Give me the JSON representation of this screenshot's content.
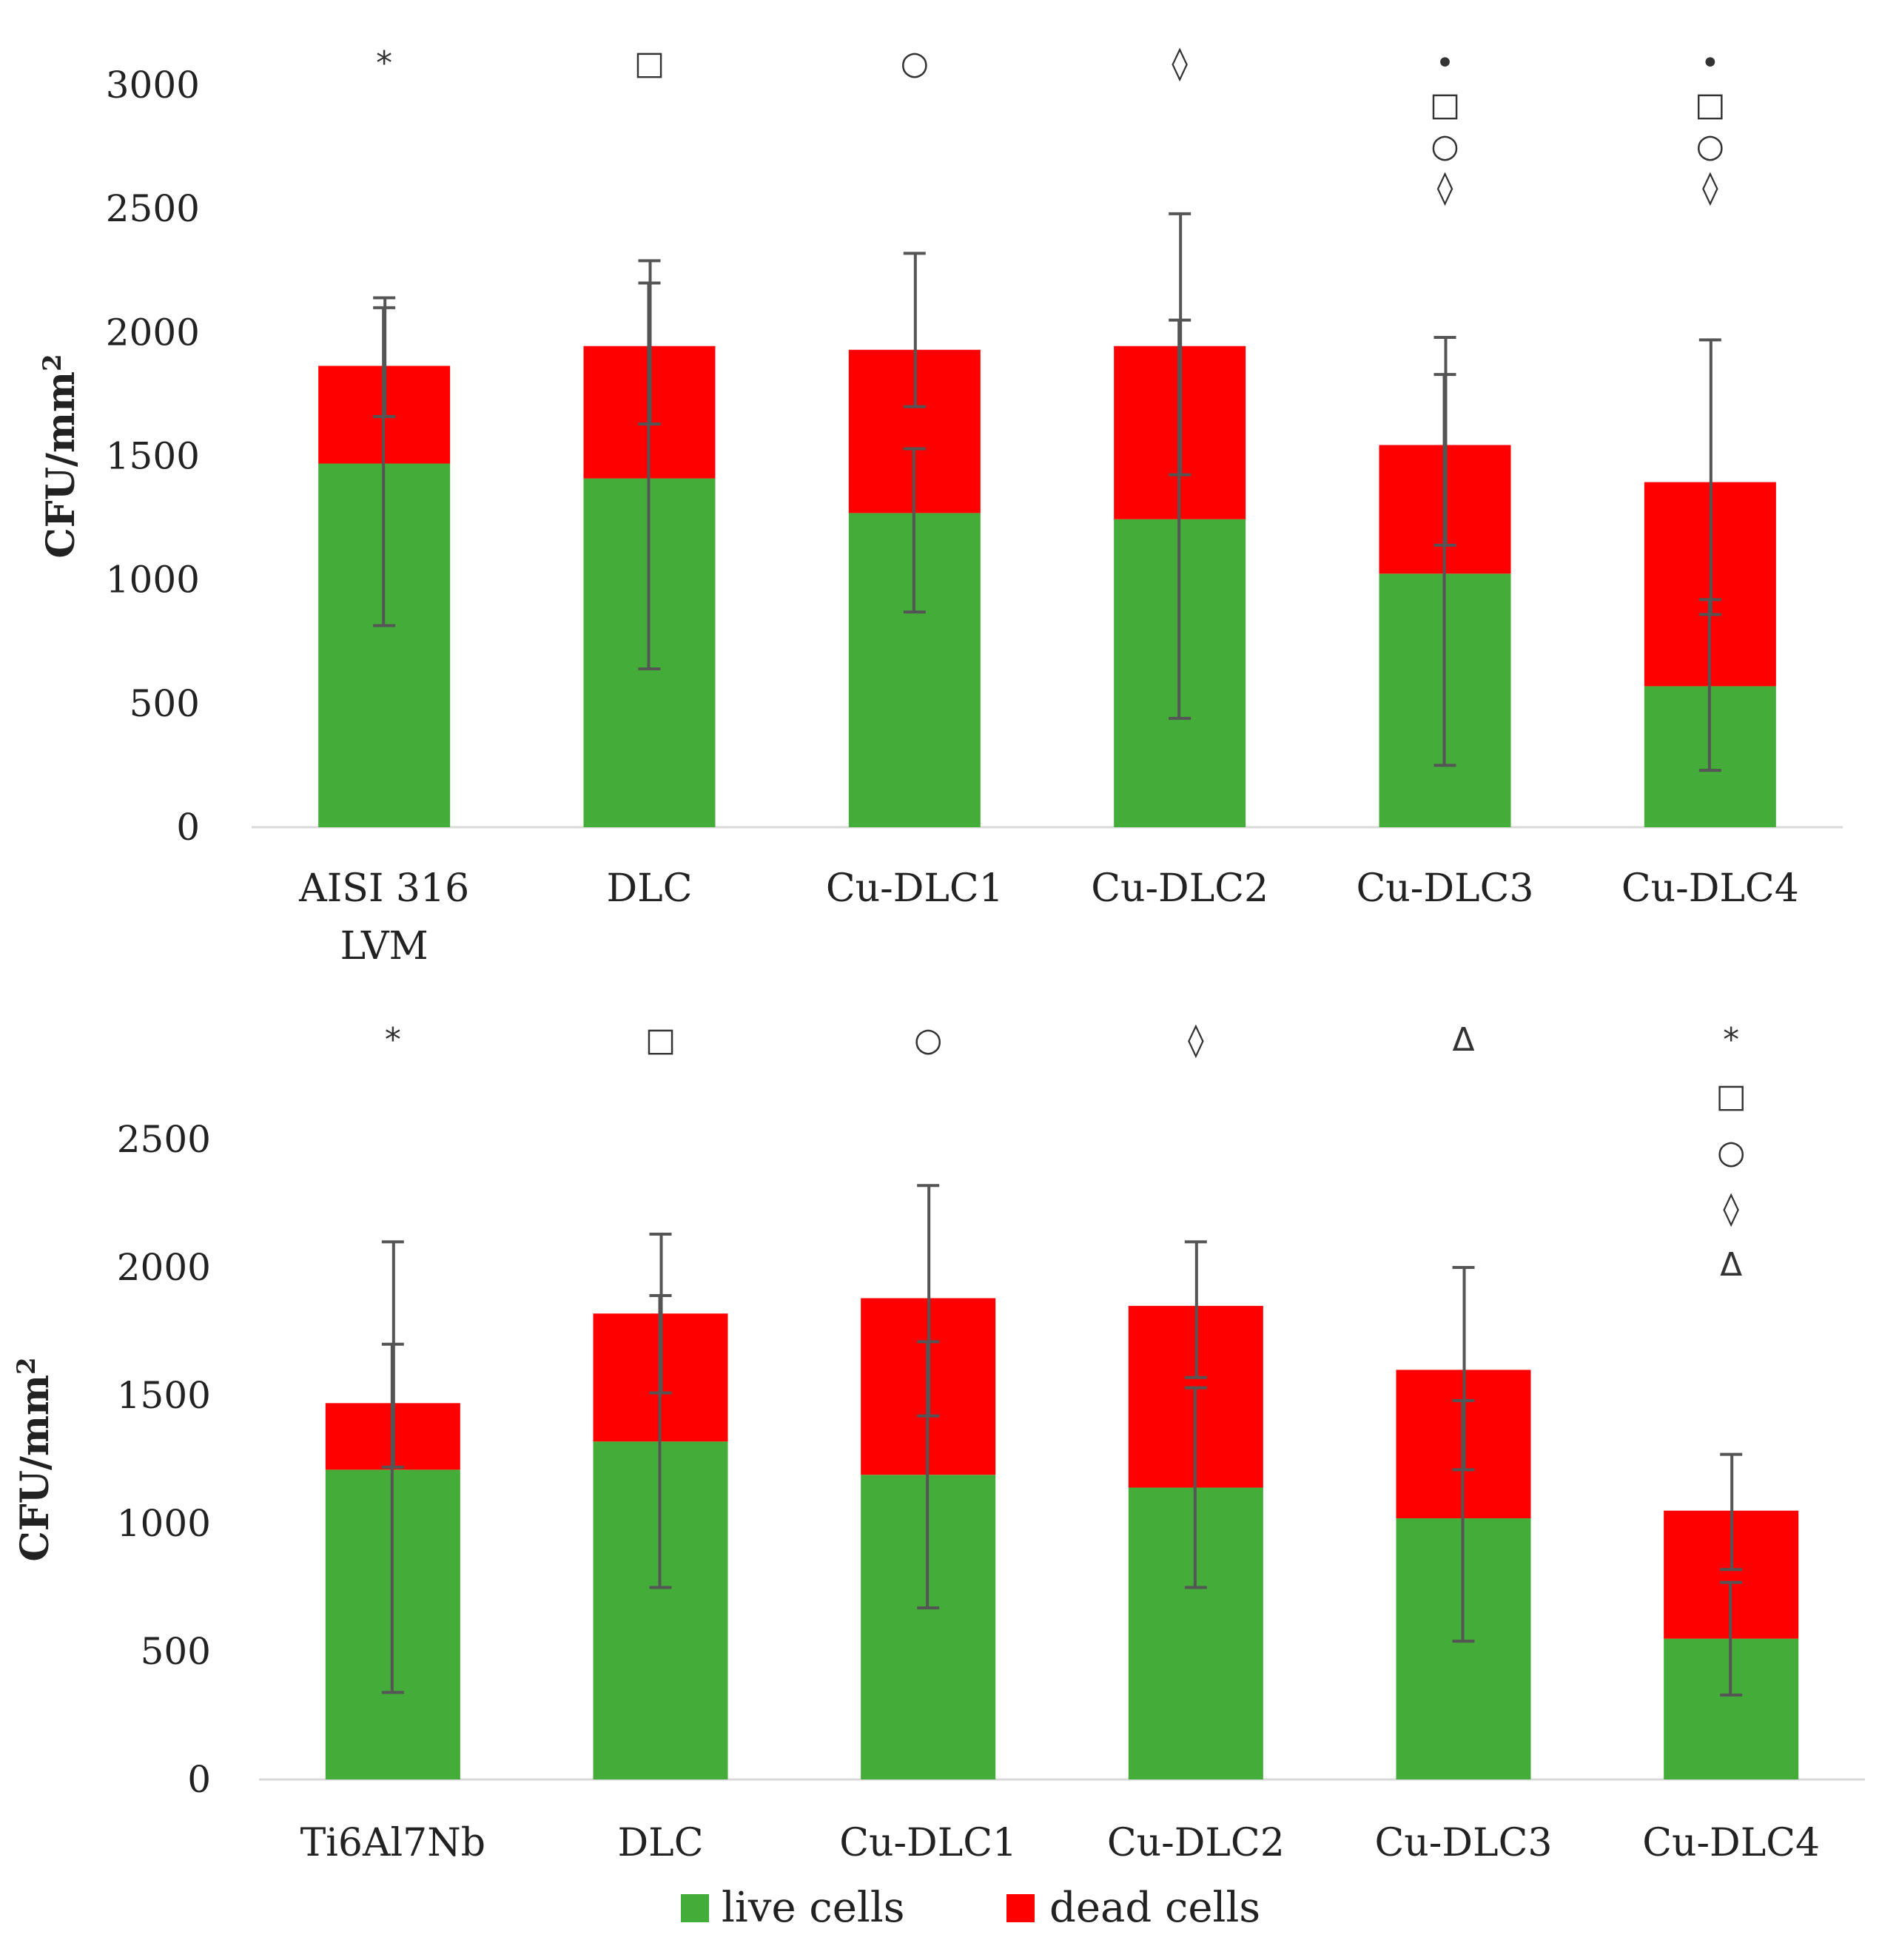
{
  "colors": {
    "live": "#44ad3a",
    "dead": "#ff0000",
    "error": "#555555",
    "axis": "#d9d9d9"
  },
  "legend": {
    "live_label": "live cells",
    "dead_label": "dead cells"
  },
  "chart_data": [
    {
      "type": "bar",
      "stacked": true,
      "ylabel": "CFU/mm",
      "ylabel_superscript": "2",
      "ylim": [
        0,
        3000
      ],
      "ticks": [
        0,
        500,
        1000,
        1500,
        2000,
        2500,
        3000
      ],
      "categories": [
        {
          "lines": [
            "AISI 316",
            "LVM"
          ]
        },
        {
          "lines": [
            "DLC"
          ]
        },
        {
          "lines": [
            "Cu-DLC1"
          ]
        },
        {
          "lines": [
            "Cu-DLC2"
          ]
        },
        {
          "lines": [
            "Cu-DLC3"
          ]
        },
        {
          "lines": [
            "Cu-DLC4"
          ]
        }
      ],
      "series": [
        {
          "name": "live cells",
          "values": [
            1470,
            1410,
            1270,
            1245,
            1025,
            570
          ],
          "error_low": [
            815,
            640,
            870,
            440,
            250,
            230
          ],
          "error_high": [
            2100,
            2200,
            1530,
            2050,
            1830,
            920
          ]
        },
        {
          "name": "dead cells",
          "values": [
            395,
            535,
            660,
            700,
            520,
            825
          ],
          "error_low": [
            1660,
            1630,
            1700,
            1425,
            1140,
            860
          ],
          "error_high": [
            2140,
            2290,
            2320,
            2480,
            1980,
            1970
          ]
        }
      ],
      "significance": [
        [
          "*"
        ],
        [
          "□"
        ],
        [
          "○"
        ],
        [
          "◊"
        ],
        [
          "•",
          "□",
          "○",
          "◊"
        ],
        [
          "•",
          "□",
          "○",
          "◊"
        ]
      ]
    },
    {
      "type": "bar",
      "stacked": true,
      "ylabel": "CFU/mm",
      "ylabel_superscript": "2",
      "ylim": [
        0,
        2500
      ],
      "ticks": [
        0,
        500,
        1000,
        1500,
        2000,
        2500
      ],
      "categories": [
        {
          "lines": [
            "Ti6Al7Nb"
          ]
        },
        {
          "lines": [
            "DLC"
          ]
        },
        {
          "lines": [
            "Cu-DLC1"
          ]
        },
        {
          "lines": [
            "Cu-DLC2"
          ]
        },
        {
          "lines": [
            "Cu-DLC3"
          ]
        },
        {
          "lines": [
            "Cu-DLC4"
          ]
        }
      ],
      "series": [
        {
          "name": "live cells",
          "values": [
            1210,
            1320,
            1190,
            1140,
            1020,
            550
          ],
          "error_low": [
            340,
            750,
            670,
            750,
            540,
            330
          ],
          "error_high": [
            1700,
            1890,
            1710,
            1530,
            1480,
            770
          ]
        },
        {
          "name": "dead cells",
          "values": [
            260,
            500,
            690,
            710,
            580,
            500
          ],
          "error_low": [
            1220,
            1510,
            1420,
            1570,
            1210,
            820
          ],
          "error_high": [
            2100,
            2130,
            2320,
            2100,
            2000,
            1270
          ]
        }
      ],
      "significance": [
        [
          "*"
        ],
        [
          "□"
        ],
        [
          "○"
        ],
        [
          "◊"
        ],
        [
          "Δ"
        ],
        [
          "*",
          "□",
          "○",
          "◊",
          "Δ"
        ]
      ]
    }
  ]
}
